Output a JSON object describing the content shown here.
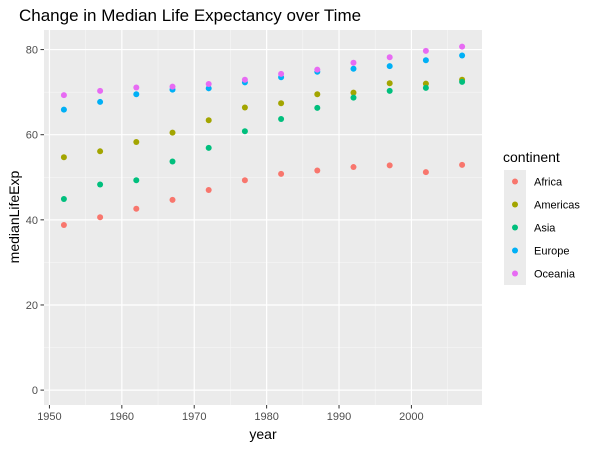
{
  "chart_data": {
    "type": "scatter",
    "title": "Change in Median Life Expectancy over Time",
    "xlabel": "year",
    "ylabel": "medianLifeExp",
    "xlim": [
      1949.25,
      2009.75
    ],
    "ylim": [
      -3.5,
      84.6
    ],
    "xticks": [
      1950,
      1960,
      1970,
      1980,
      1990,
      2000
    ],
    "yticks": [
      0,
      20,
      40,
      60,
      80
    ],
    "grid": true,
    "legend": {
      "title": "continent",
      "position": "right"
    },
    "x": [
      1952,
      1957,
      1962,
      1967,
      1972,
      1977,
      1982,
      1987,
      1992,
      1997,
      2002,
      2007
    ],
    "series": [
      {
        "name": "Africa",
        "color": "#F8766D",
        "values": [
          38.8,
          40.6,
          42.6,
          44.7,
          47.0,
          49.3,
          50.8,
          51.6,
          52.4,
          52.8,
          51.2,
          52.9
        ]
      },
      {
        "name": "Americas",
        "color": "#A3A500",
        "values": [
          54.7,
          56.1,
          58.3,
          60.5,
          63.4,
          66.4,
          67.4,
          69.5,
          69.9,
          72.1,
          72.0,
          72.9
        ]
      },
      {
        "name": "Asia",
        "color": "#00BF7D",
        "values": [
          44.9,
          48.3,
          49.3,
          53.7,
          56.9,
          60.8,
          63.7,
          66.3,
          68.7,
          70.3,
          71.0,
          72.4
        ]
      },
      {
        "name": "Europe",
        "color": "#00B0F6",
        "values": [
          65.9,
          67.7,
          69.5,
          70.6,
          70.9,
          72.3,
          73.5,
          74.8,
          75.5,
          76.1,
          77.5,
          78.6
        ]
      },
      {
        "name": "Oceania",
        "color": "#E76BF3",
        "values": [
          69.3,
          70.3,
          71.1,
          71.3,
          71.9,
          72.9,
          74.3,
          75.3,
          76.9,
          78.2,
          79.7,
          80.7
        ]
      }
    ]
  }
}
